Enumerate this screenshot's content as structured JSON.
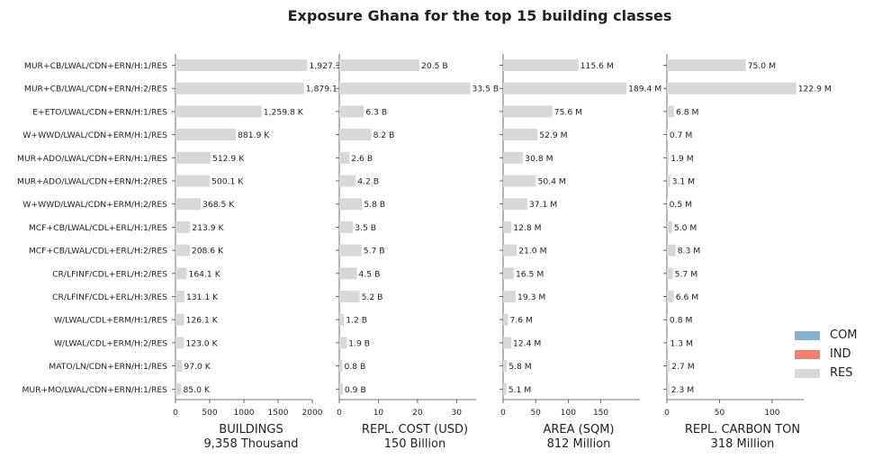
{
  "chart_data": {
    "type": "bar",
    "title": "Exposure Ghana for the top 15 building classes",
    "categories": [
      "MUR+CB/LWAL/CDN+ERN/H:1/RES",
      "MUR+CB/LWAL/CDN+ERN/H:2/RES",
      "E+ETO/LWAL/CDN+ERN/H:1/RES",
      "W+WWD/LWAL/CDN+ERM/H:1/RES",
      "MUR+ADO/LWAL/CDN+ERN/H:1/RES",
      "MUR+ADO/LWAL/CDN+ERN/H:2/RES",
      "W+WWD/LWAL/CDN+ERM/H:2/RES",
      "MCF+CB/LWAL/CDL+ERL/H:1/RES",
      "MCF+CB/LWAL/CDL+ERL/H:2/RES",
      "CR/LFINF/CDL+ERL/H:2/RES",
      "CR/LFINF/CDL+ERL/H:3/RES",
      "W/LWAL/CDL+ERM/H:1/RES",
      "W/LWAL/CDL+ERM/H:2/RES",
      "MATO/LN/CDN+ERN/H:1/RES",
      "MUR+MO/LWAL/CDN+ERN/H:1/RES"
    ],
    "panels": [
      {
        "xlabel": "BUILDINGS",
        "total": "9,358 Thousand",
        "xlim": [
          0,
          2000
        ],
        "ticks": [
          0,
          500,
          1000,
          1500,
          2000
        ],
        "values": [
          1927.3,
          1879.1,
          1259.8,
          881.9,
          512.9,
          500.1,
          368.5,
          213.9,
          208.6,
          164.1,
          131.1,
          126.1,
          123.0,
          97.0,
          85.0
        ],
        "labels": [
          "1,927.3",
          "1,879.1",
          "1,259.8 K",
          "881.9 K",
          "512.9 K",
          "500.1 K",
          "368.5 K",
          "213.9 K",
          "208.6 K",
          "164.1 K",
          "131.1 K",
          "126.1 K",
          "123.0 K",
          "97.0 K",
          "85.0 K"
        ]
      },
      {
        "xlabel": "REPL. COST (USD)",
        "total": "150 Billion",
        "xlim": [
          0,
          35
        ],
        "ticks": [
          0,
          10,
          20,
          30
        ],
        "values": [
          20.5,
          33.5,
          6.3,
          8.2,
          2.6,
          4.2,
          5.8,
          3.5,
          5.7,
          4.5,
          5.2,
          1.2,
          1.9,
          0.8,
          0.9
        ],
        "labels": [
          "20.5 B",
          "33.5 B",
          "6.3 B",
          "8.2 B",
          "2.6 B",
          "4.2 B",
          "5.8 B",
          "3.5 B",
          "5.7 B",
          "4.5 B",
          "5.2 B",
          "1.2 B",
          "1.9 B",
          "0.8 B",
          "0.9 B"
        ]
      },
      {
        "xlabel": "AREA (SQM)",
        "total": "812 Million",
        "xlim": [
          0,
          210
        ],
        "ticks": [
          0,
          50,
          100,
          150
        ],
        "values": [
          115.6,
          189.4,
          75.6,
          52.9,
          30.8,
          50.4,
          37.1,
          12.8,
          21.0,
          16.5,
          19.3,
          7.6,
          12.4,
          5.8,
          5.1
        ],
        "labels": [
          "115.6 M",
          "189.4 M",
          "75.6 M",
          "52.9 M",
          "30.8 M",
          "50.4 M",
          "37.1 M",
          "12.8 M",
          "21.0 M",
          "16.5 M",
          "19.3 M",
          "7.6 M",
          "12.4 M",
          "5.8 M",
          "5.1 M"
        ]
      },
      {
        "xlabel": "REPL. CARBON TON",
        "total": "318 Million",
        "xlim": [
          0,
          130
        ],
        "ticks": [
          0,
          50,
          100
        ],
        "values": [
          75.0,
          122.9,
          6.8,
          0.7,
          1.9,
          3.1,
          0.5,
          5.0,
          8.3,
          5.7,
          6.6,
          0.8,
          1.3,
          2.7,
          2.3
        ],
        "labels": [
          "75.0 M",
          "122.9 M",
          "6.8 M",
          "0.7 M",
          "1.9 M",
          "3.1 M",
          "0.5 M",
          "5.0 M",
          "8.3 M",
          "5.7 M",
          "6.6 M",
          "0.8 M",
          "1.3 M",
          "2.7 M",
          "2.3 M"
        ]
      }
    ],
    "legend": {
      "placement": "right",
      "items": [
        {
          "name": "COM",
          "color": "#86b1d1"
        },
        {
          "name": "IND",
          "color": "#f47e6c"
        },
        {
          "name": "RES",
          "color": "#d8d8d8"
        }
      ]
    },
    "bar_color": "#d8d8d8"
  }
}
